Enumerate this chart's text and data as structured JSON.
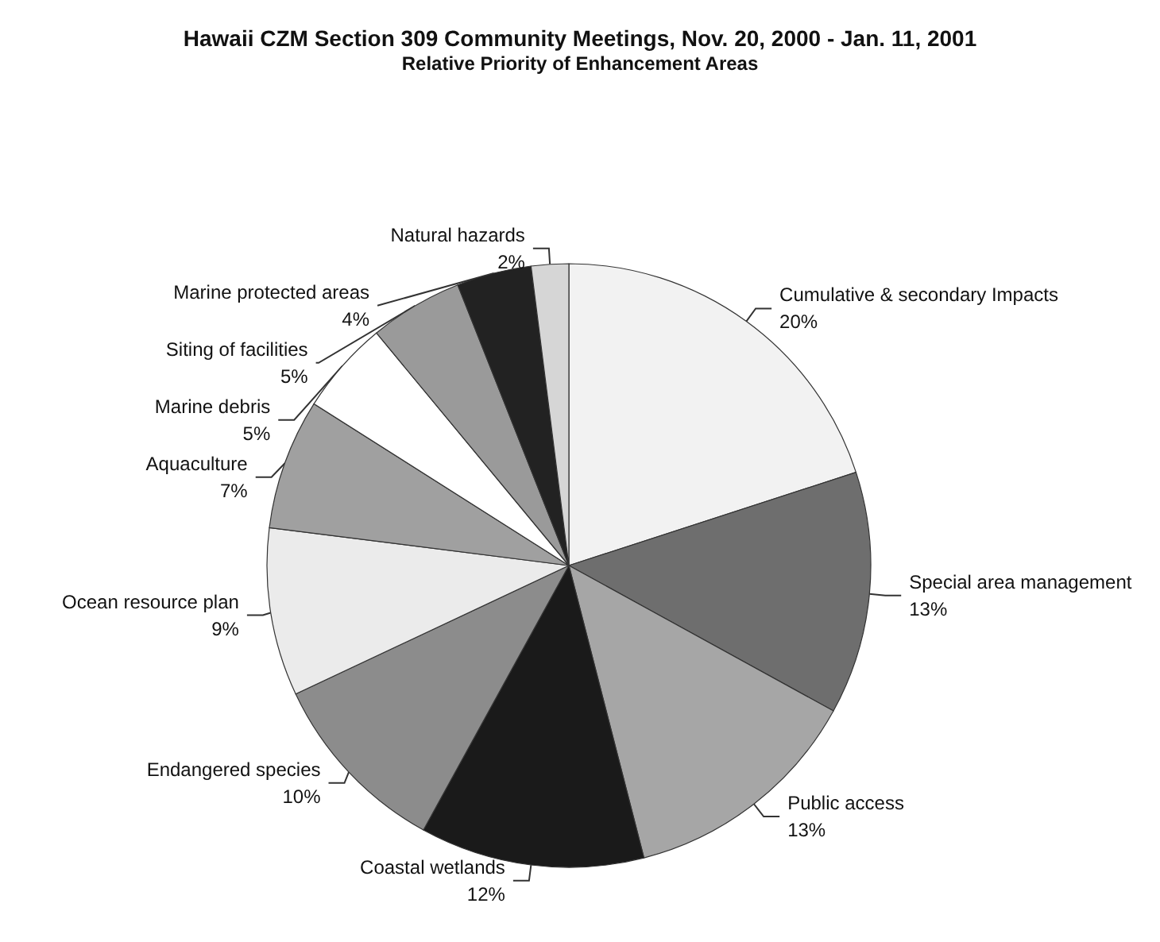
{
  "chart_data": {
    "type": "pie",
    "title": "Hawaii CZM Section 309 Community Meetings, Nov. 20, 2000 - Jan. 11, 2001",
    "subtitle": "Relative Priority of Enhancement Areas",
    "categories": [
      "Cumulative & secondary Impacts",
      "Special area management",
      "Public access",
      "Coastal wetlands",
      "Endangered species",
      "Ocean resource plan",
      "Aquaculture",
      "Marine debris",
      "Siting of facilities",
      "Marine protected areas",
      "Natural hazards"
    ],
    "values": [
      20,
      13,
      13,
      12,
      10,
      9,
      7,
      5,
      5,
      4,
      2
    ],
    "value_labels": [
      "20%",
      "13%",
      "13%",
      "12%",
      "10%",
      "9%",
      "7%",
      "5%",
      "5%",
      "4%",
      "2%"
    ],
    "colors": [
      "#f2f2f2",
      "#6e6e6e",
      "#a6a6a6",
      "#1a1a1a",
      "#8c8c8c",
      "#ebebeb",
      "#a0a0a0",
      "#ffffff",
      "#9a9a9a",
      "#222222",
      "#d6d6d6"
    ],
    "legend": false
  }
}
